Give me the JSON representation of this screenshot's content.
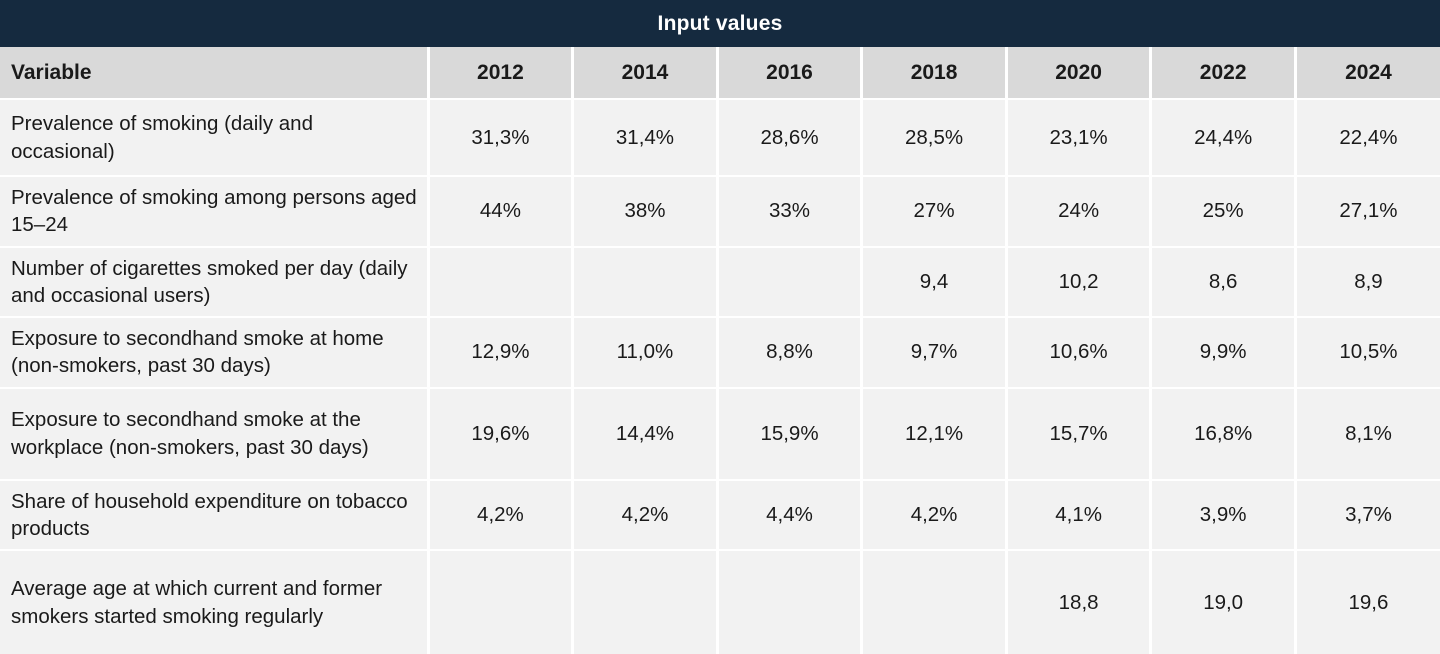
{
  "title": "Input values",
  "colors": {
    "title_bar_bg": "#152a3f",
    "title_text": "#ffffff",
    "header_row_bg": "#d9d9d9",
    "body_row_bg": "#f2f2f2",
    "separator": "#ffffff",
    "text": "#1a1a1a"
  },
  "chart_data": {
    "type": "table",
    "title": "Input values",
    "columns": [
      "Variable",
      "2012",
      "2014",
      "2016",
      "2018",
      "2020",
      "2022",
      "2024"
    ],
    "rows": [
      {
        "label": "Prevalence of smoking (daily and occasional)",
        "values": [
          "31,3%",
          "31,4%",
          "28,6%",
          "28,5%",
          "23,1%",
          "24,4%",
          "22,4%"
        ]
      },
      {
        "label": "Prevalence of smoking among persons aged 15–24",
        "values": [
          "44%",
          "38%",
          "33%",
          "27%",
          "24%",
          "25%",
          "27,1%"
        ]
      },
      {
        "label": "Number of cigarettes smoked per day (daily and occasional users)",
        "values": [
          "",
          "",
          "",
          "9,4",
          "10,2",
          "8,6",
          "8,9"
        ]
      },
      {
        "label": "Exposure to secondhand smoke at home (non-smokers, past 30 days)",
        "values": [
          "12,9%",
          "11,0%",
          "8,8%",
          "9,7%",
          "10,6%",
          "9,9%",
          "10,5%"
        ]
      },
      {
        "label": "Exposure to secondhand smoke at the workplace (non-smokers, past 30 days)",
        "values": [
          "19,6%",
          "14,4%",
          "15,9%",
          "12,1%",
          "15,7%",
          "16,8%",
          "8,1%"
        ]
      },
      {
        "label": "Share of household expenditure on tobacco products",
        "values": [
          "4,2%",
          "4,2%",
          "4,4%",
          "4,2%",
          "4,1%",
          "3,9%",
          "3,7%"
        ]
      },
      {
        "label": "Average age at which current and former smokers started smoking regularly",
        "values": [
          "",
          "",
          "",
          "",
          "18,8",
          "19,0",
          "19,6"
        ]
      }
    ]
  }
}
